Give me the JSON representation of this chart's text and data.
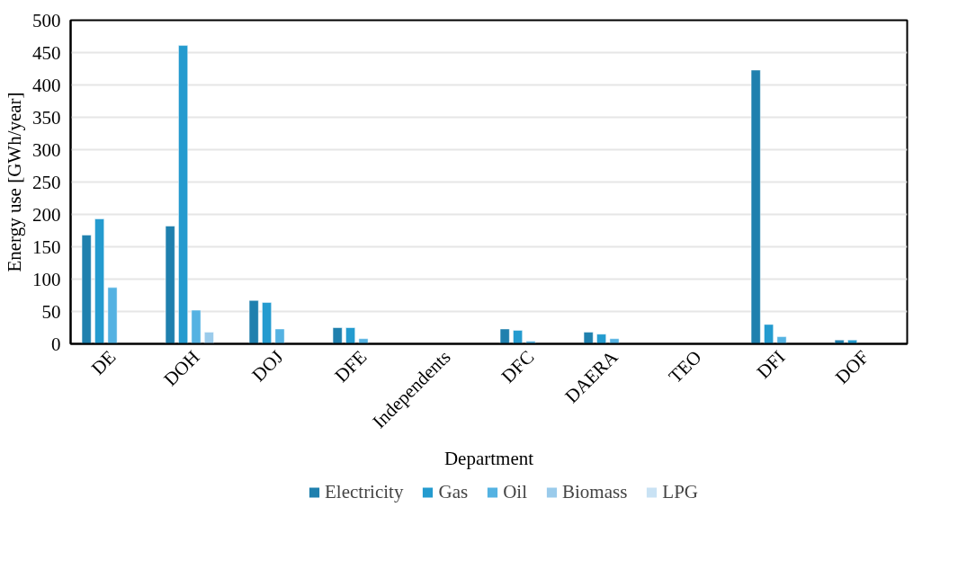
{
  "chart_data": {
    "type": "bar",
    "xlabel": "Department",
    "ylabel": "Energy use [GWh/year]",
    "categories": [
      "DE",
      "DOH",
      "DOJ",
      "DFE",
      "Independents",
      "DFC",
      "DAERA",
      "TEO",
      "DFI",
      "DOF"
    ],
    "series": [
      {
        "name": "Electricity",
        "color": "#1f80ae",
        "values": [
          168,
          182,
          67,
          25,
          null,
          23,
          18,
          null,
          423,
          6
        ]
      },
      {
        "name": "Gas",
        "color": "#249bcf",
        "values": [
          193,
          461,
          64,
          25,
          null,
          21,
          15,
          null,
          30,
          6
        ]
      },
      {
        "name": "Oil",
        "color": "#54b2e2",
        "values": [
          87,
          52,
          23,
          8,
          null,
          4,
          8,
          null,
          11,
          null
        ]
      },
      {
        "name": "Biomass",
        "color": "#9acbeb",
        "values": [
          null,
          18,
          null,
          null,
          null,
          null,
          null,
          null,
          null,
          null
        ]
      },
      {
        "name": "LPG",
        "color": "#c9e2f4",
        "values": [
          null,
          null,
          null,
          null,
          null,
          null,
          null,
          null,
          null,
          null
        ]
      }
    ],
    "ylim": [
      0,
      500
    ],
    "yticks": [
      0,
      50,
      100,
      150,
      200,
      250,
      300,
      350,
      400,
      450,
      500
    ],
    "grid": "y",
    "legend": "bottom"
  }
}
